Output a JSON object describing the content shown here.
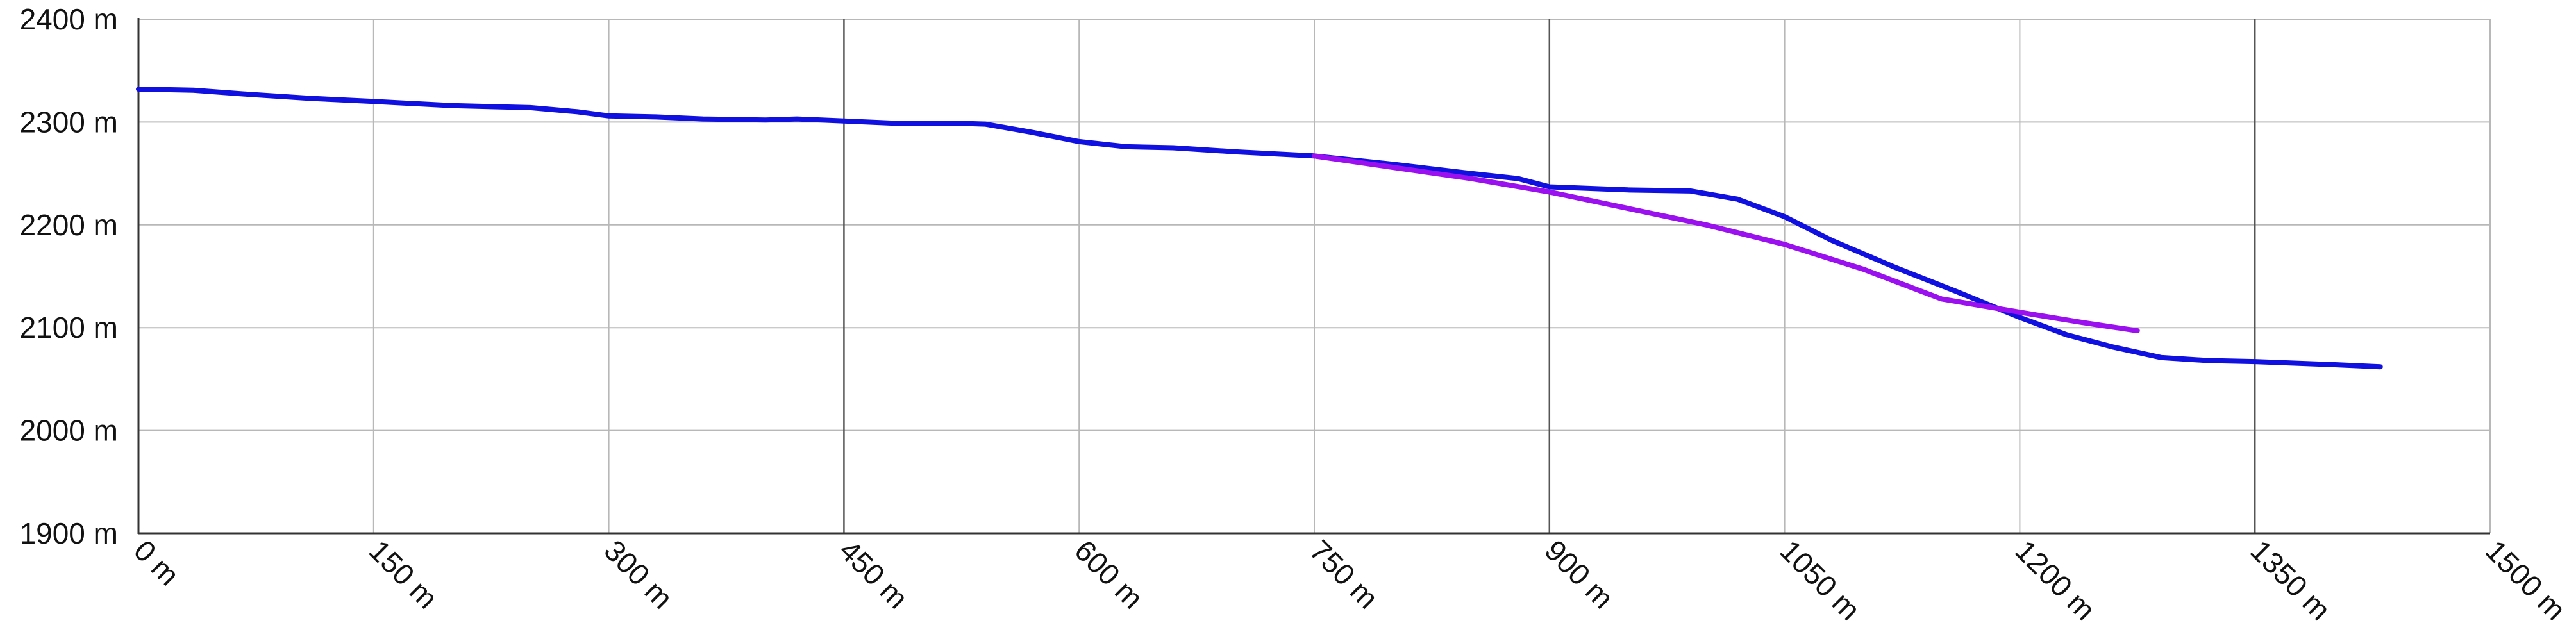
{
  "chart_data": {
    "type": "line",
    "title": "",
    "xlabel": "",
    "ylabel": "",
    "xlim": [
      0,
      1500
    ],
    "ylim": [
      1900,
      2400
    ],
    "x_ticks": [
      0,
      150,
      300,
      450,
      600,
      750,
      900,
      1050,
      1200,
      1350,
      1500
    ],
    "y_ticks": [
      1900,
      2000,
      2100,
      2200,
      2300,
      2400
    ],
    "x_tick_labels": [
      "0 m",
      "150 m",
      "300 m",
      "450 m",
      "600 m",
      "750 m",
      "900 m",
      "1050 m",
      "1200 m",
      "1350 m",
      "1500 m"
    ],
    "y_tick_labels": [
      "1900 m",
      "2000 m",
      "2100 m",
      "2200 m",
      "2300 m",
      "2400 m"
    ],
    "grid": true,
    "series": [
      {
        "color": "#1010e0",
        "x": [
          0,
          35,
          70,
          110,
          150,
          200,
          250,
          280,
          300,
          330,
          360,
          400,
          420,
          450,
          480,
          520,
          540,
          570,
          600,
          630,
          660,
          700,
          750,
          800,
          850,
          880,
          900,
          950,
          990,
          1020,
          1050,
          1080,
          1120,
          1160,
          1200,
          1230,
          1260,
          1290,
          1320,
          1350,
          1400,
          1430
        ],
        "values": [
          2332,
          2331,
          2327,
          2323,
          2320,
          2316,
          2314,
          2310,
          2306,
          2305,
          2303,
          2302,
          2303,
          2301,
          2299,
          2299,
          2298,
          2290,
          2281,
          2276,
          2275,
          2271,
          2267,
          2259,
          2250,
          2245,
          2237,
          2234,
          2233,
          2225,
          2208,
          2185,
          2159,
          2135,
          2110,
          2093,
          2081,
          2071,
          2068,
          2067,
          2064,
          2062
        ]
      },
      {
        "color": "#9a10ee",
        "x": [
          750,
          800,
          850,
          900,
          950,
          1000,
          1050,
          1100,
          1150,
          1200,
          1240,
          1275
        ],
        "values": [
          2267,
          2256,
          2245,
          2232,
          2216,
          2200,
          2181,
          2157,
          2128,
          2115,
          2105,
          2097
        ]
      }
    ]
  }
}
